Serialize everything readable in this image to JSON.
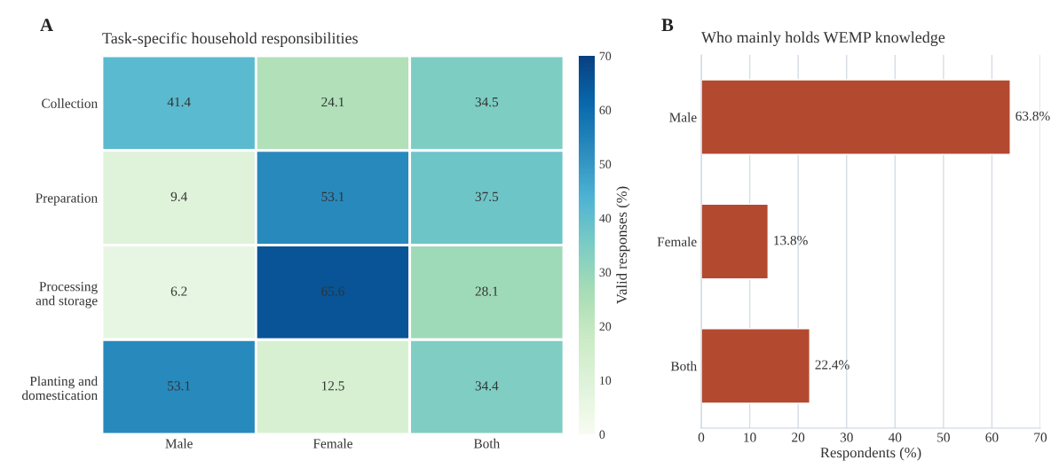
{
  "chart_data": [
    {
      "type": "heatmap",
      "title": "Task-specific household responsibilities",
      "annotations": [
        "A"
      ],
      "categories": [
        "Male",
        "Female",
        "Both"
      ],
      "y_categories": [
        "Collection",
        "Preparation",
        "Processing\nand storage",
        "Planting and\ndomestication"
      ],
      "cells": [
        [
          41.4,
          24.1,
          34.5
        ],
        [
          9.4,
          53.1,
          37.5
        ],
        [
          6.2,
          65.6,
          28.1
        ],
        [
          53.1,
          12.5,
          34.4
        ]
      ],
      "data_labels": true,
      "clim": [
        0,
        70
      ],
      "cticks": [
        0,
        10,
        20,
        30,
        40,
        50,
        60,
        70
      ],
      "clabel": "Valid responses (%)"
    },
    {
      "type": "bar",
      "orientation": "horizontal",
      "title": "Who mainly holds WEMP knowledge",
      "annotations": [
        "B"
      ],
      "categories": [
        "Male",
        "Female",
        "Both"
      ],
      "values": [
        63.8,
        13.8,
        22.4
      ],
      "value_labels": [
        "63.8%",
        "13.8%",
        "22.4%"
      ],
      "color": "#b34a2f",
      "xlim": [
        0,
        70
      ],
      "xticks": [
        0,
        10,
        20,
        30,
        40,
        50,
        60,
        70
      ],
      "xlabel": "Respondents (%)",
      "grid": "x"
    }
  ]
}
